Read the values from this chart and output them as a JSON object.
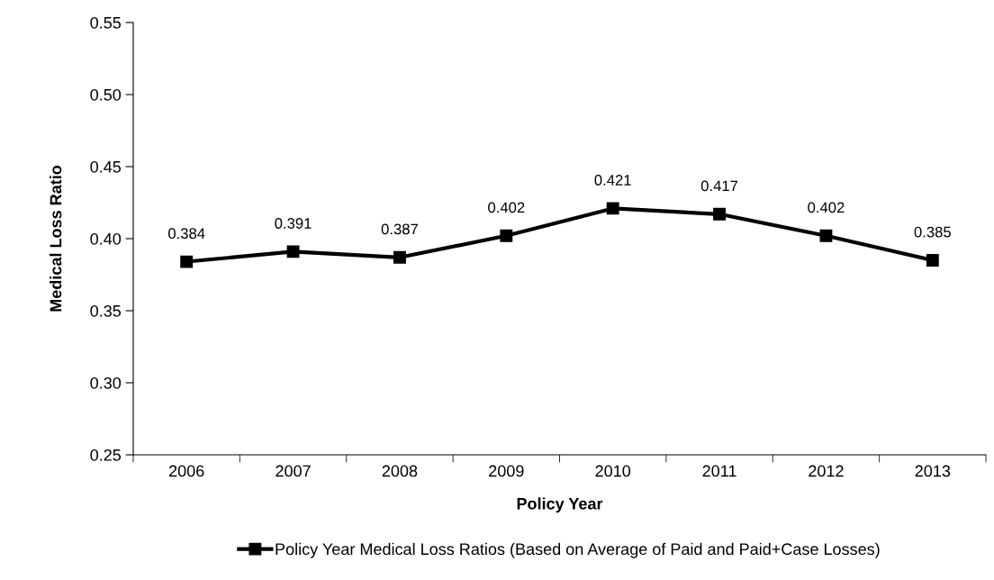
{
  "chart_data": {
    "type": "line",
    "xlabel": "Policy Year",
    "ylabel": "Medical Loss Ratio",
    "categories": [
      "2006",
      "2007",
      "2008",
      "2009",
      "2010",
      "2011",
      "2012",
      "2013"
    ],
    "series": [
      {
        "name": "Policy Year Medical Loss Ratios (Based on Average of Paid and Paid+Case Losses)",
        "color": "#000000",
        "values": [
          0.384,
          0.391,
          0.387,
          0.402,
          0.421,
          0.417,
          0.402,
          0.385
        ]
      }
    ],
    "ylim": [
      0.25,
      0.55
    ],
    "yticks": [
      0.25,
      {
        "value": 0.3,
        "label": "0.30"
      },
      0.35,
      {
        "value": 0.4,
        "label": "0.40"
      },
      0.45,
      {
        "value": 0.5,
        "label": "0.50"
      },
      0.55
    ],
    "marker": "square",
    "line_style": "solid",
    "data_labels": true,
    "grid": false,
    "legend": "bottom"
  }
}
